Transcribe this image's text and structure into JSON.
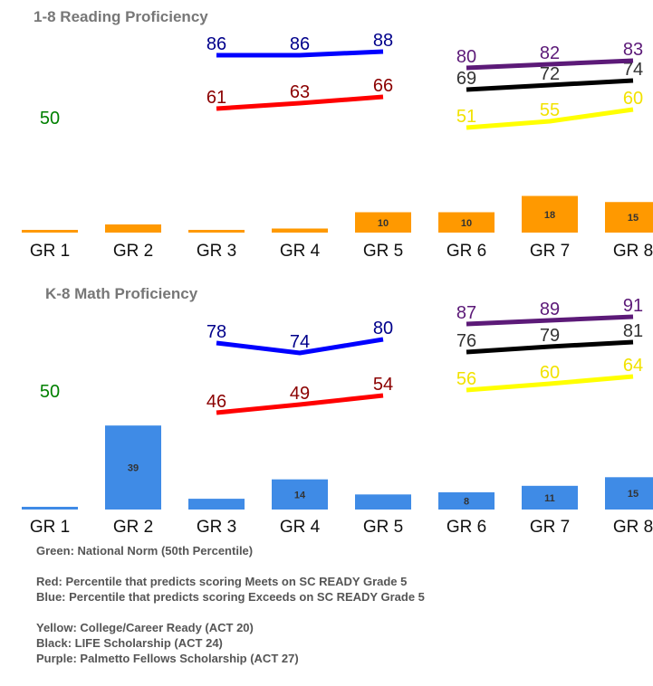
{
  "colors": {
    "green": "#008000",
    "red": "#ff0000",
    "red_label": "#8b0000",
    "blue": "#0000ff",
    "blue_label": "#00008b",
    "yellow": "#ffff00",
    "yellow_label": "#f2e200",
    "black": "#000000",
    "black_label": "#333333",
    "purple": "#5c1a78",
    "purple_label": "#5c1a78",
    "reading_bar": "#ff9900",
    "math_bar": "#3f8be6",
    "title": "#777777",
    "legend_text": "#555555"
  },
  "chart_data": [
    {
      "type": "bar",
      "title": "1-8 Reading Proficiency",
      "categories": [
        "GR 1",
        "GR 2",
        "GR 3",
        "GR 4",
        "GR 5",
        "GR 6",
        "GR 7",
        "GR 8"
      ],
      "bar_values": [
        1,
        4,
        1,
        2,
        10,
        10,
        18,
        15
      ],
      "bar_labels": [
        "",
        "",
        "",
        "",
        "10",
        "10",
        "18",
        "15"
      ],
      "bar_color": "orange",
      "lines": [
        {
          "color": "green",
          "x": [
            "GR 1",
            "GR 2"
          ],
          "values": [
            50,
            50
          ],
          "labels": [
            "50",
            "50"
          ]
        },
        {
          "color": "red",
          "x": [
            "GR 3",
            "GR 4",
            "GR 5"
          ],
          "values": [
            61,
            63,
            66
          ],
          "labels": [
            "61",
            "63",
            "66"
          ]
        },
        {
          "color": "blue",
          "x": [
            "GR 3",
            "GR 4",
            "GR 5"
          ],
          "values": [
            86,
            86,
            88
          ],
          "labels": [
            "86",
            "86",
            "88"
          ]
        },
        {
          "color": "yellow",
          "x": [
            "GR 6",
            "GR 7",
            "GR 8"
          ],
          "values": [
            51,
            55,
            60
          ],
          "labels": [
            "51",
            "55",
            "60"
          ]
        },
        {
          "color": "black",
          "x": [
            "GR 6",
            "GR 7",
            "GR 8"
          ],
          "values": [
            69,
            72,
            74
          ],
          "labels": [
            "69",
            "72",
            "74"
          ]
        },
        {
          "color": "purple",
          "x": [
            "GR 6",
            "GR 7",
            "GR 8"
          ],
          "values": [
            80,
            82,
            83
          ],
          "labels": [
            "80",
            "82",
            "83"
          ]
        }
      ]
    },
    {
      "type": "bar",
      "title": "K-8 Math Proficiency",
      "categories": [
        "GR 1",
        "GR 2",
        "GR 3",
        "GR 4",
        "GR 5",
        "GR 6",
        "GR 7",
        "GR 8"
      ],
      "bar_values": [
        1,
        39,
        5,
        14,
        7,
        8,
        11,
        15
      ],
      "bar_labels": [
        "",
        "39",
        "",
        "14",
        "",
        "8",
        "11",
        "15"
      ],
      "bar_color": "blue",
      "lines": [
        {
          "color": "green",
          "x": [
            "GR 1",
            "GR 2"
          ],
          "values": [
            50,
            50
          ],
          "labels": [
            "50",
            "50"
          ]
        },
        {
          "color": "red",
          "x": [
            "GR 3",
            "GR 4",
            "GR 5"
          ],
          "values": [
            46,
            49,
            54
          ],
          "labels": [
            "46",
            "49",
            "54"
          ]
        },
        {
          "color": "blue",
          "x": [
            "GR 3",
            "GR 4",
            "GR 5"
          ],
          "values": [
            78,
            74,
            80
          ],
          "labels": [
            "78",
            "74",
            "80"
          ]
        },
        {
          "color": "yellow",
          "x": [
            "GR 6",
            "GR 7",
            "GR 8"
          ],
          "values": [
            56,
            60,
            64
          ],
          "labels": [
            "56",
            "60",
            "64"
          ]
        },
        {
          "color": "black",
          "x": [
            "GR 6",
            "GR 7",
            "GR 8"
          ],
          "values": [
            76,
            79,
            81
          ],
          "labels": [
            "76",
            "79",
            "81"
          ]
        },
        {
          "color": "purple",
          "x": [
            "GR 6",
            "GR 7",
            "GR 8"
          ],
          "values": [
            87,
            89,
            91
          ],
          "labels": [
            "87",
            "89",
            "91"
          ]
        }
      ]
    }
  ],
  "legend": [
    "Green: National Norm (50th Percentile)",
    "",
    "Red: Percentile that predicts scoring Meets on SC READY Grade 5",
    "Blue: Percentile that predicts scoring Exceeds on SC READY Grade 5",
    "",
    "Yellow: College/Career Ready (ACT 20)",
    "Black: LIFE Scholarship (ACT 24)",
    "Purple: Palmetto Fellows Scholarship (ACT 27)"
  ]
}
